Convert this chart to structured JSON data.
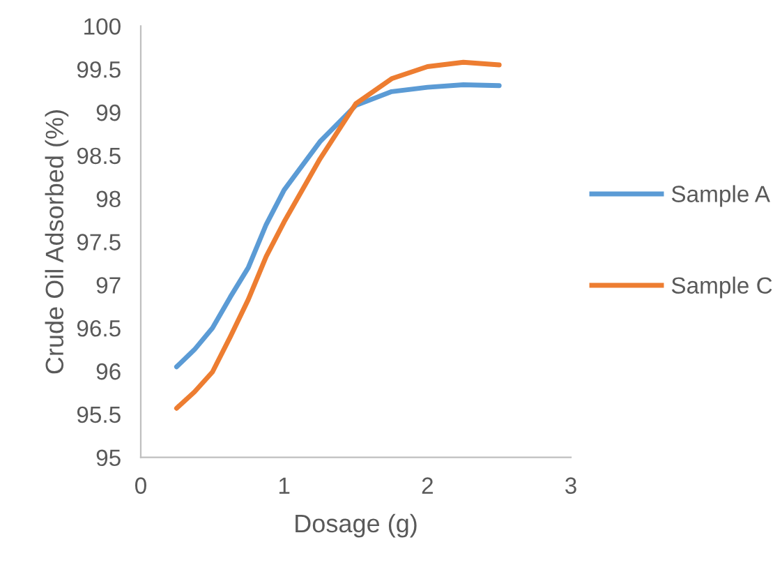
{
  "chart_data": {
    "type": "line",
    "xlabel": "Dosage (g)",
    "ylabel": "Crude Oil Adsorbed (%)",
    "x": [
      0.25,
      0.375,
      0.5,
      0.625,
      0.75,
      0.875,
      1.0,
      1.25,
      1.5,
      1.75,
      2.0,
      2.25,
      2.5
    ],
    "series": [
      {
        "name": "Sample A",
        "color": "#5b9bd5",
        "values": [
          96.05,
          96.25,
          96.5,
          96.86,
          97.2,
          97.7,
          98.1,
          98.66,
          99.08,
          99.24,
          99.29,
          99.32,
          99.31
        ]
      },
      {
        "name": "Sample C",
        "color": "#ed7d31",
        "values": [
          95.57,
          95.76,
          95.99,
          96.4,
          96.83,
          97.33,
          97.73,
          98.46,
          99.1,
          99.39,
          99.53,
          99.58,
          99.55
        ]
      }
    ],
    "xlim": [
      0,
      3
    ],
    "xticks": [
      0,
      1,
      2,
      3
    ],
    "ylim": [
      95,
      100
    ],
    "yticks": [
      95,
      95.5,
      96,
      96.5,
      97,
      97.5,
      98,
      98.5,
      99,
      99.5,
      100
    ],
    "grid": false,
    "legend": "right",
    "marker": "none",
    "line_style": "solid"
  }
}
